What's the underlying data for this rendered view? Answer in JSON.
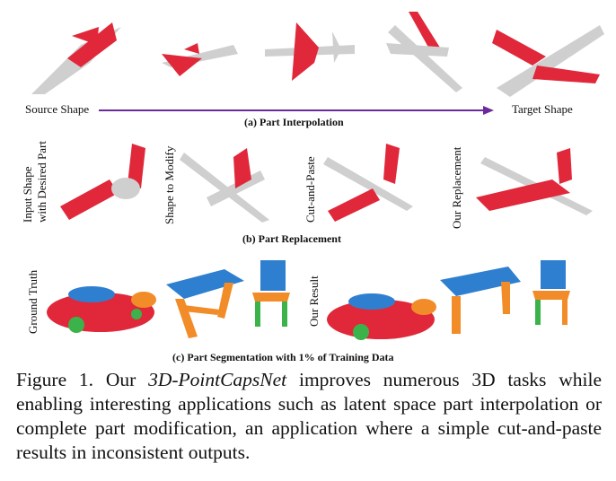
{
  "colors": {
    "part": "#e0283a",
    "body": "#cfcfcf",
    "arrow": "#6a2a9a",
    "blue": "#2f7fd0",
    "orange": "#f28c28",
    "green": "#3cb34a"
  },
  "row_a": {
    "source_label": "Source Shape",
    "target_label": "Target Shape",
    "caption": "(a) Part Interpolation"
  },
  "row_b": {
    "labels": [
      "Input Shape",
      "with Desired Part",
      "Shape to Modify",
      "Cut-and-Paste",
      "Our Replacement"
    ],
    "caption": "(b) Part Replacement"
  },
  "row_c": {
    "labels": [
      "Ground Truth",
      "Our Result"
    ],
    "caption": "(c) Part Segmentation with 1% of Training Data"
  },
  "figure": {
    "prefix": "Figure 1. Our ",
    "name": "3D-PointCapsNet",
    "suffix": " improves numerous 3D tasks while enabling interesting applications such as latent space part interpolation or complete part modification, an application where a simple cut-and-paste results in inconsistent outputs."
  }
}
